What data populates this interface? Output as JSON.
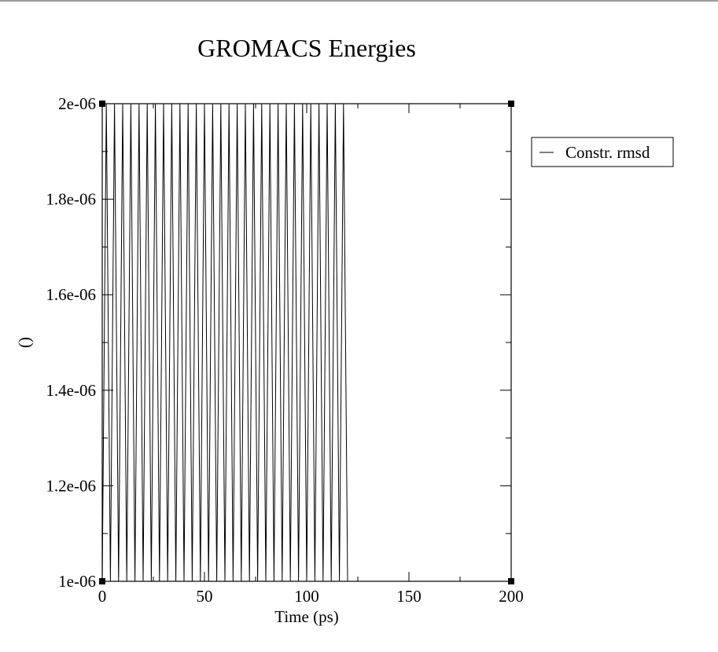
{
  "chart_data": {
    "type": "line",
    "title": "GROMACS Energies",
    "xlabel": "Time (ps)",
    "ylabel": "()",
    "xlim": [
      0,
      200
    ],
    "ylim": [
      1e-06,
      2e-06
    ],
    "x_ticks": [
      0,
      50,
      100,
      150,
      200
    ],
    "x_tick_labels": [
      "0",
      "50",
      "100",
      "150",
      "200"
    ],
    "y_ticks": [
      1e-06,
      1.2e-06,
      1.4e-06,
      1.6e-06,
      1.8e-06,
      2e-06
    ],
    "y_tick_labels": [
      "1e-06",
      "1.2e-06",
      "1.4e-06",
      "1.6e-06",
      "1.8e-06",
      "2e-06"
    ],
    "grid": false,
    "legend_position": "right",
    "series": [
      {
        "name": "Constr. rmsd",
        "color": "#000000",
        "x": [
          0,
          2,
          4,
          6,
          8,
          10,
          12,
          14,
          16,
          18,
          20,
          22,
          24,
          26,
          28,
          30,
          32,
          34,
          36,
          38,
          40,
          42,
          44,
          46,
          48,
          50,
          52,
          54,
          56,
          58,
          60,
          62,
          64,
          66,
          68,
          70,
          72,
          74,
          76,
          78,
          80,
          82,
          84,
          86,
          88,
          90,
          92,
          94,
          96,
          98,
          100,
          102,
          104,
          106,
          108,
          110,
          112,
          114,
          116,
          118,
          120
        ],
        "y": [
          1e-06,
          2e-06,
          1e-06,
          2e-06,
          1e-06,
          2e-06,
          1e-06,
          2e-06,
          1e-06,
          2e-06,
          1e-06,
          2e-06,
          1e-06,
          2e-06,
          1e-06,
          2e-06,
          1e-06,
          2e-06,
          1e-06,
          2e-06,
          1e-06,
          2e-06,
          1e-06,
          2e-06,
          1e-06,
          2e-06,
          1e-06,
          2e-06,
          1e-06,
          2e-06,
          1e-06,
          2e-06,
          1e-06,
          2e-06,
          1e-06,
          2e-06,
          1e-06,
          2e-06,
          1e-06,
          2e-06,
          1e-06,
          2e-06,
          1e-06,
          2e-06,
          1e-06,
          2e-06,
          1e-06,
          2e-06,
          1e-06,
          2e-06,
          1e-06,
          2e-06,
          1e-06,
          2e-06,
          1e-06,
          2e-06,
          1e-06,
          2e-06,
          1e-06,
          2e-06,
          1e-06
        ]
      }
    ]
  }
}
